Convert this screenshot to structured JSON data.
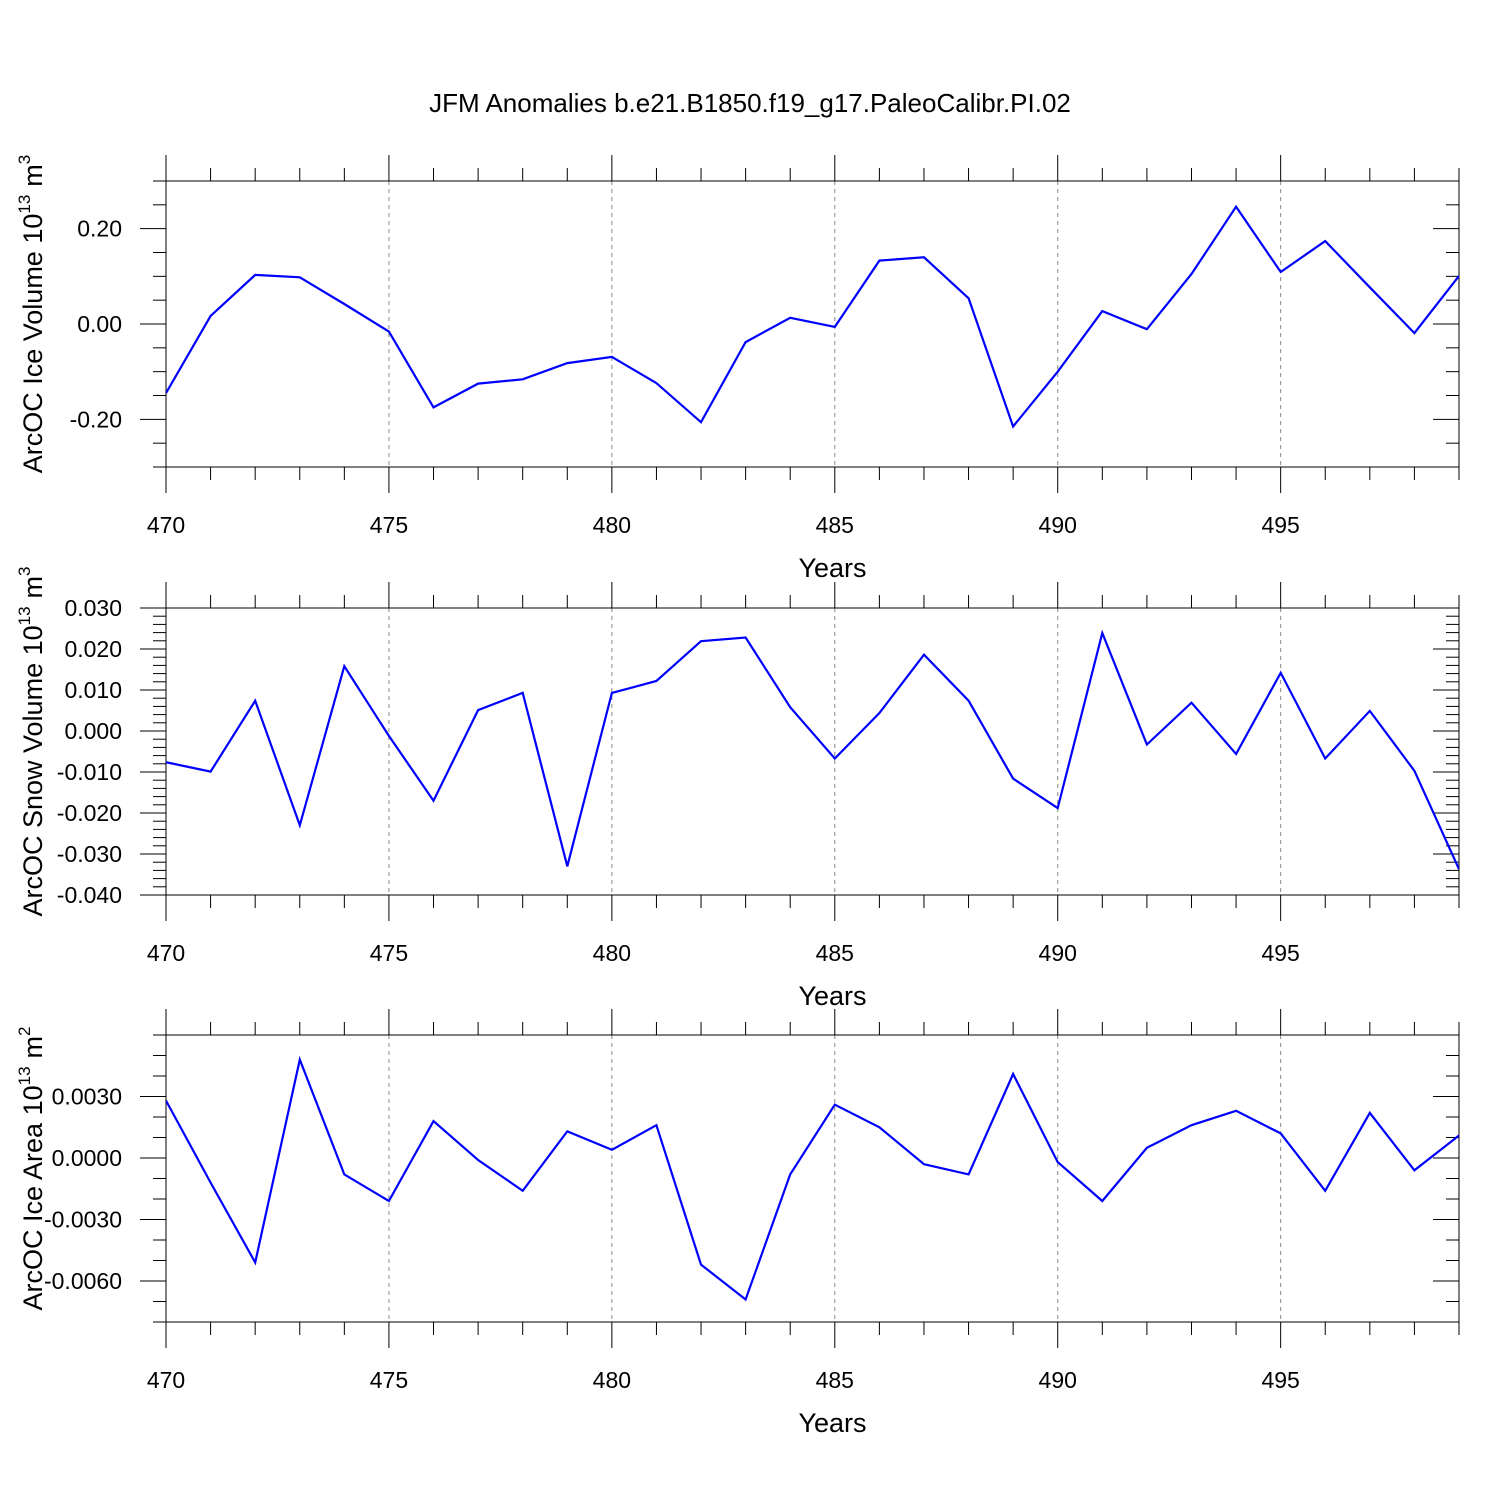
{
  "chart_data": [
    {
      "type": "line",
      "title": "JFM Anomalies b.e21.B1850.f19_g17.PaleoCalibr.PI.02",
      "xlabel": "Years",
      "ylabel": "ArcOC Ice Volume 10",
      "ylabel_exp": "13",
      "ylabel_unit": "m",
      "ylabel_unit_exp": "3",
      "xlim": [
        470,
        499
      ],
      "ylim": [
        -0.3,
        0.3
      ],
      "xticks": [
        470,
        475,
        480,
        485,
        490,
        495
      ],
      "xtick_labels": [
        "470",
        "475",
        "480",
        "485",
        "490",
        "495"
      ],
      "yticks": [
        -0.2,
        0.0,
        0.2
      ],
      "ytick_labels": [
        "-0.20",
        "0.00",
        "0.20"
      ],
      "y_minor_step": 0.05,
      "x_minor_step": 1,
      "grid": "vertical dashed at major x ticks",
      "series": [
        {
          "color": "#0000ff",
          "x": [
            470,
            471,
            472,
            473,
            474,
            475,
            476,
            477,
            478,
            479,
            480,
            481,
            482,
            483,
            484,
            485,
            486,
            487,
            488,
            489,
            490,
            491,
            492,
            493,
            494,
            495,
            496,
            497,
            498,
            499
          ],
          "values": [
            -0.145,
            0.017,
            0.103,
            0.098,
            0.042,
            -0.016,
            -0.175,
            -0.125,
            -0.116,
            -0.082,
            -0.069,
            -0.124,
            -0.206,
            -0.038,
            0.013,
            -0.006,
            0.133,
            0.14,
            0.054,
            -0.215,
            -0.1,
            0.027,
            -0.011,
            0.105,
            0.246,
            0.109,
            0.174,
            0.077,
            -0.019,
            0.101
          ]
        }
      ]
    },
    {
      "type": "line",
      "xlabel": "Years",
      "ylabel": "ArcOC Snow Volume 10",
      "ylabel_exp": "13",
      "ylabel_unit": "m",
      "ylabel_unit_exp": "3",
      "xlim": [
        470,
        499
      ],
      "ylim": [
        -0.04,
        0.03
      ],
      "xticks": [
        470,
        475,
        480,
        485,
        490,
        495
      ],
      "xtick_labels": [
        "470",
        "475",
        "480",
        "485",
        "490",
        "495"
      ],
      "yticks": [
        -0.04,
        -0.03,
        -0.02,
        -0.01,
        0.0,
        0.01,
        0.02,
        0.03
      ],
      "ytick_labels": [
        "-0.040",
        "-0.030",
        "-0.020",
        "-0.010",
        "0.000",
        "0.010",
        "0.020",
        "0.030"
      ],
      "y_minor_step": 0.002,
      "x_minor_step": 1,
      "grid": "vertical dashed at major x ticks",
      "series": [
        {
          "color": "#0000ff",
          "x": [
            470,
            471,
            472,
            473,
            474,
            475,
            476,
            477,
            478,
            479,
            480,
            481,
            482,
            483,
            484,
            485,
            486,
            487,
            488,
            489,
            490,
            491,
            492,
            493,
            494,
            495,
            496,
            497,
            498,
            499
          ],
          "values": [
            -0.0076,
            -0.0099,
            0.0074,
            -0.023,
            0.0158,
            -0.0012,
            -0.017,
            0.0051,
            0.0093,
            -0.033,
            0.0093,
            0.0122,
            0.0219,
            0.0228,
            0.0058,
            -0.0067,
            0.0044,
            0.0186,
            0.0074,
            -0.0116,
            -0.0188,
            0.0239,
            -0.0033,
            0.0069,
            -0.0056,
            0.0142,
            -0.0067,
            0.0049,
            -0.0097,
            -0.0337
          ]
        }
      ]
    },
    {
      "type": "line",
      "xlabel": "Years",
      "ylabel": "ArcOC Ice Area 10",
      "ylabel_exp": "13",
      "ylabel_unit": "m",
      "ylabel_unit_exp": "2",
      "xlim": [
        470,
        499
      ],
      "ylim": [
        -0.008,
        0.006
      ],
      "xticks": [
        470,
        475,
        480,
        485,
        490,
        495
      ],
      "xtick_labels": [
        "470",
        "475",
        "480",
        "485",
        "490",
        "495"
      ],
      "yticks": [
        -0.006,
        -0.003,
        0.0,
        0.003
      ],
      "ytick_labels": [
        "-0.0060",
        "-0.0030",
        "0.0000",
        "0.0030"
      ],
      "y_minor_step": 0.001,
      "x_minor_step": 1,
      "grid": "vertical dashed at major x ticks",
      "series": [
        {
          "color": "#0000ff",
          "x": [
            470,
            471,
            472,
            473,
            474,
            475,
            476,
            477,
            478,
            479,
            480,
            481,
            482,
            483,
            484,
            485,
            486,
            487,
            488,
            489,
            490,
            491,
            492,
            493,
            494,
            495,
            496,
            497,
            498,
            499
          ],
          "values": [
            0.0028,
            -0.0012,
            -0.0051,
            0.0048,
            -0.0008,
            -0.0021,
            0.0018,
            -0.0001,
            -0.0016,
            0.0013,
            0.0004,
            0.0016,
            -0.0052,
            -0.0069,
            -0.0008,
            0.0026,
            0.0015,
            -0.0003,
            -0.0008,
            0.0041,
            -0.0002,
            -0.0021,
            0.0005,
            0.0016,
            0.0023,
            0.0012,
            -0.0016,
            0.0022,
            -0.0006,
            0.0011
          ]
        }
      ]
    }
  ]
}
